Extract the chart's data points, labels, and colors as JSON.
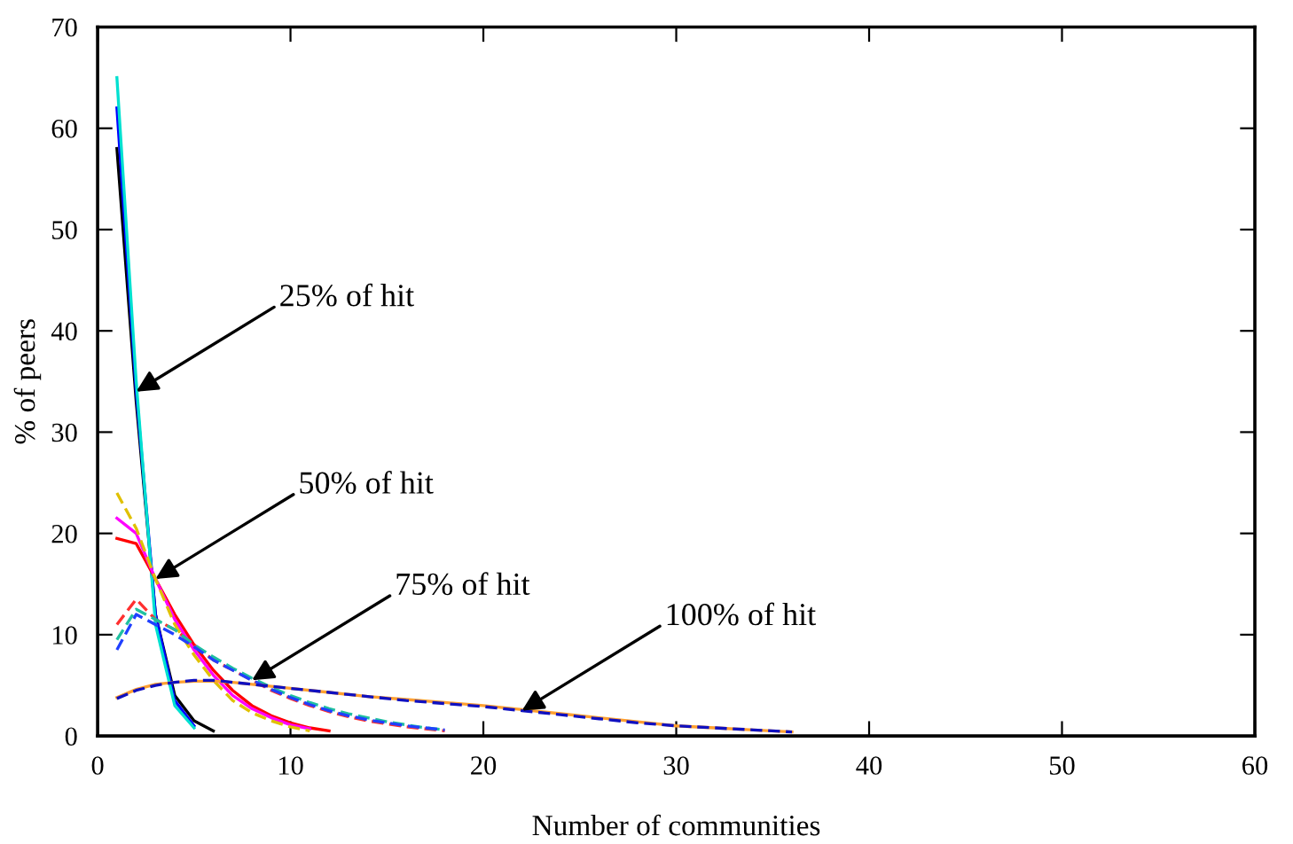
{
  "chart_data": {
    "type": "line",
    "xlabel": "Number of communities",
    "ylabel": "% of peers",
    "xlim": [
      0,
      60
    ],
    "ylim": [
      0,
      70
    ],
    "xticks": [
      0,
      10,
      20,
      30,
      40,
      50,
      60
    ],
    "yticks": [
      0,
      10,
      20,
      30,
      40,
      50,
      60,
      70
    ],
    "grid": false,
    "marker": "none",
    "series": [
      {
        "color": "#000000",
        "line_style": "solid",
        "x": [
          1,
          2,
          3,
          4,
          5,
          6
        ],
        "values": [
          58,
          33,
          12,
          4,
          1.5,
          0.5
        ]
      },
      {
        "color": "#0000ff",
        "line_style": "solid",
        "x": [
          1,
          2,
          3,
          4,
          5
        ],
        "values": [
          62,
          34,
          12,
          3.5,
          1
        ]
      },
      {
        "color": "#00e0d0",
        "line_style": "solid",
        "x": [
          1,
          2,
          3,
          4,
          5
        ],
        "values": [
          65,
          35,
          11,
          3,
          0.8
        ]
      },
      {
        "color": "#ff0000",
        "line_style": "solid",
        "x": [
          1,
          2,
          3,
          4,
          5,
          6,
          7,
          8,
          9,
          10,
          11,
          12
        ],
        "values": [
          19.5,
          19,
          15.5,
          12,
          9,
          6.5,
          4.5,
          3,
          2,
          1.3,
          0.8,
          0.5
        ]
      },
      {
        "color": "#ff00ff",
        "line_style": "solid",
        "x": [
          1,
          2,
          3,
          4,
          5,
          6,
          7,
          8,
          9,
          10,
          11
        ],
        "values": [
          21.5,
          20,
          15.5,
          11.5,
          8.5,
          6,
          4,
          2.7,
          1.8,
          1.1,
          0.7
        ]
      },
      {
        "color": "#e0c000",
        "line_style": "dashed",
        "x": [
          1,
          2,
          3,
          4,
          5,
          6,
          7,
          8,
          9,
          10,
          11
        ],
        "values": [
          24,
          20.5,
          15.5,
          11,
          8,
          5.5,
          3.5,
          2.3,
          1.5,
          0.9,
          0.5
        ]
      },
      {
        "color": "#ff3030",
        "line_style": "dashed",
        "x": [
          1,
          2,
          3,
          4,
          5,
          6,
          7,
          8,
          9,
          10,
          11,
          12,
          13,
          14,
          15,
          16,
          17,
          18
        ],
        "values": [
          11,
          13.5,
          11.5,
          10.5,
          9,
          7.5,
          6.5,
          5.5,
          4.5,
          3.7,
          3,
          2.4,
          1.9,
          1.5,
          1.2,
          0.9,
          0.7,
          0.5
        ]
      },
      {
        "color": "#20c0a0",
        "line_style": "dashed",
        "x": [
          1,
          2,
          3,
          4,
          5,
          6,
          7,
          8,
          9,
          10,
          11,
          12,
          13,
          14,
          15,
          16,
          17,
          18
        ],
        "values": [
          9.5,
          12.5,
          11.5,
          10.5,
          9,
          7.8,
          6.7,
          5.7,
          4.8,
          4,
          3.3,
          2.7,
          2.2,
          1.8,
          1.4,
          1.1,
          0.8,
          0.6
        ]
      },
      {
        "color": "#2040ff",
        "line_style": "dashed",
        "x": [
          1,
          2,
          3,
          4,
          5,
          6,
          7,
          8,
          9,
          10,
          11,
          12,
          13,
          14,
          15,
          16,
          17,
          18
        ],
        "values": [
          8.5,
          12,
          11,
          10,
          8.8,
          7.5,
          6.5,
          5.5,
          4.6,
          3.8,
          3.1,
          2.5,
          2,
          1.6,
          1.3,
          1,
          0.8,
          0.6
        ]
      },
      {
        "color": "#ffa030",
        "line_style": "solid",
        "x": [
          1,
          2,
          3,
          4,
          5,
          6,
          7,
          8,
          9,
          10,
          12,
          14,
          16,
          18,
          20,
          22,
          24,
          26,
          28,
          30,
          32,
          34,
          36
        ],
        "values": [
          3.8,
          4.6,
          5.1,
          5.3,
          5.4,
          5.4,
          5.3,
          5.1,
          4.9,
          4.7,
          4.3,
          3.9,
          3.6,
          3.3,
          3,
          2.6,
          2.2,
          1.8,
          1.4,
          1,
          0.8,
          0.6,
          0.4
        ]
      },
      {
        "color": "#1010c0",
        "line_style": "dashed",
        "x": [
          1,
          2,
          3,
          4,
          5,
          6,
          7,
          8,
          9,
          10,
          12,
          14,
          16,
          18,
          20,
          22,
          24,
          26,
          28,
          30,
          32,
          34,
          36
        ],
        "values": [
          3.7,
          4.5,
          5,
          5.3,
          5.5,
          5.5,
          5.3,
          5.1,
          4.9,
          4.7,
          4.3,
          3.9,
          3.5,
          3.2,
          2.9,
          2.5,
          2.1,
          1.7,
          1.3,
          1,
          0.8,
          0.6,
          0.4
        ]
      }
    ],
    "annotations": [
      {
        "text": "25% of hit",
        "x": 2,
        "y": 34
      },
      {
        "text": "50% of hit",
        "x": 3,
        "y": 15.5
      },
      {
        "text": "75% of hit",
        "x": 8,
        "y": 5.5
      },
      {
        "text": "100% of hit",
        "x": 22,
        "y": 2.5
      }
    ]
  }
}
